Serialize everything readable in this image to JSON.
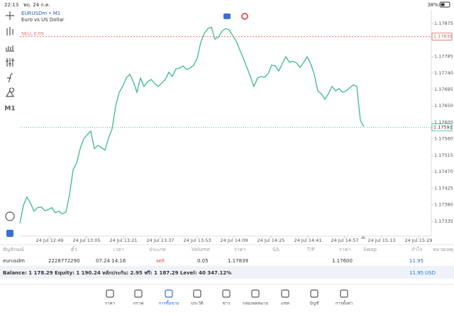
{
  "status_bar": {
    "time": "22:13",
    "date": "พฤ. 24 ก.ค.",
    "battery": "38%"
  },
  "toolbar": {
    "timeframe": "M1"
  },
  "chart": {
    "type": "line",
    "symbol": "EURUSDm • M1",
    "description": "Euro vs US Dollar",
    "order_label": "SELL 0.05",
    "color": "#3dba8c",
    "order_color": "#e0625a",
    "bid_color": "#3dba8c",
    "order_price": 1.17839,
    "bid_price": 1.17591,
    "values": [
      1.17329,
      1.17378,
      1.17401,
      1.17384,
      1.17362,
      1.17372,
      1.17374,
      1.17364,
      1.17366,
      1.17372,
      1.17358,
      1.17362,
      1.17355,
      1.1736,
      1.17407,
      1.17475,
      1.17494,
      1.17533,
      1.1756,
      1.17571,
      1.17581,
      1.17533,
      1.17542,
      1.17536,
      1.17529,
      1.17562,
      1.17587,
      1.17649,
      1.17687,
      1.17703,
      1.17726,
      1.17736,
      1.17716,
      1.17687,
      1.17726,
      1.17703,
      1.17716,
      1.17722,
      1.17711,
      1.17703,
      1.17712,
      1.17722,
      1.17742,
      1.1773,
      1.17751,
      1.17753,
      1.17759,
      1.17749,
      1.17753,
      1.17761,
      1.1778,
      1.17823,
      1.17848,
      1.17861,
      1.17865,
      1.17832,
      1.17838,
      1.17854,
      1.17861,
      1.17858,
      1.17842,
      1.17827,
      1.17803,
      1.1778,
      1.17755,
      1.1773,
      1.17703,
      1.17726,
      1.1773,
      1.17728,
      1.17738,
      1.17761,
      1.17759,
      1.17745,
      1.17765,
      1.17784,
      1.17769,
      1.17772,
      1.17767,
      1.17755,
      1.17769,
      1.17784,
      1.17765,
      1.17736,
      1.17691,
      1.17683,
      1.17668,
      1.17683,
      1.17703,
      1.17691,
      1.17697,
      1.17687,
      1.17691,
      1.17699,
      1.17707,
      1.17703,
      1.1761,
      1.17593
    ],
    "xlim": [
      0,
      116
    ],
    "xticks": [
      {
        "value": 8.4,
        "label": "24 Jul 12:49"
      },
      {
        "value": 18.8,
        "label": "24 Jul 13:05"
      },
      {
        "value": 29.2,
        "label": "24 Jul 13:21"
      },
      {
        "value": 39.6,
        "label": "24 Jul 13:37"
      },
      {
        "value": 50,
        "label": "24 Jul 13:53"
      },
      {
        "value": 60.4,
        "label": "24 Jul 14:09"
      },
      {
        "value": 70.8,
        "label": "24 Jul 14:25"
      },
      {
        "value": 81.2,
        "label": "24 Jul 14:41"
      },
      {
        "value": 91.6,
        "label": "24 Jul 14:57"
      },
      {
        "value": 102,
        "label": "24 Jul 15:13"
      },
      {
        "value": 112.4,
        "label": "24 Jul 15:29"
      }
    ],
    "ylim": [
      1.17294,
      1.17912
    ],
    "yticks": [
      1.17875,
      1.17785,
      {
        "value": 1.1774,
        "label": "1.17740"
      },
      1.17695,
      {
        "value": 1.1765,
        "label": "1.17650"
      },
      1.17605,
      {
        "value": 1.1756,
        "label": "1.17560"
      },
      1.17515,
      {
        "value": 1.1747,
        "label": "1.17470"
      },
      1.17425,
      {
        "value": 1.1738,
        "label": "1.17380"
      },
      1.17335
    ]
  },
  "table": {
    "headers": [
      "สัญลักษณ์",
      "ตั๋ว",
      "เวลา",
      "ประเภท",
      "Volume",
      "ราคา",
      "S/L",
      "T/P",
      "ราคา",
      "Swap",
      "กำไร",
      "หมายเหตุ"
    ],
    "rows": [
      {
        "symbol": "eurusdm",
        "ticket": "2228772290",
        "time": "07.24 14:16",
        "type": "sell",
        "volume": "0.05",
        "price": "1.17839",
        "current_price": "1.17600",
        "profit": "11.95"
      }
    ]
  },
  "balance": {
    "summary": "Balance: 1 178.29 Equity: 1 190.24 หลักประกัน: 2.95 ฟรี: 1 187.29 Level: 40 347.12%",
    "profit": "11.95",
    "currency": "USD"
  },
  "nav": [
    "ราคา",
    "กราฟ",
    "การซื้อขาย",
    "ประวัติ",
    "ข่าว",
    "กล่องจดหมาย",
    "แชท",
    "บัญชี",
    "การตั้งค่า"
  ]
}
